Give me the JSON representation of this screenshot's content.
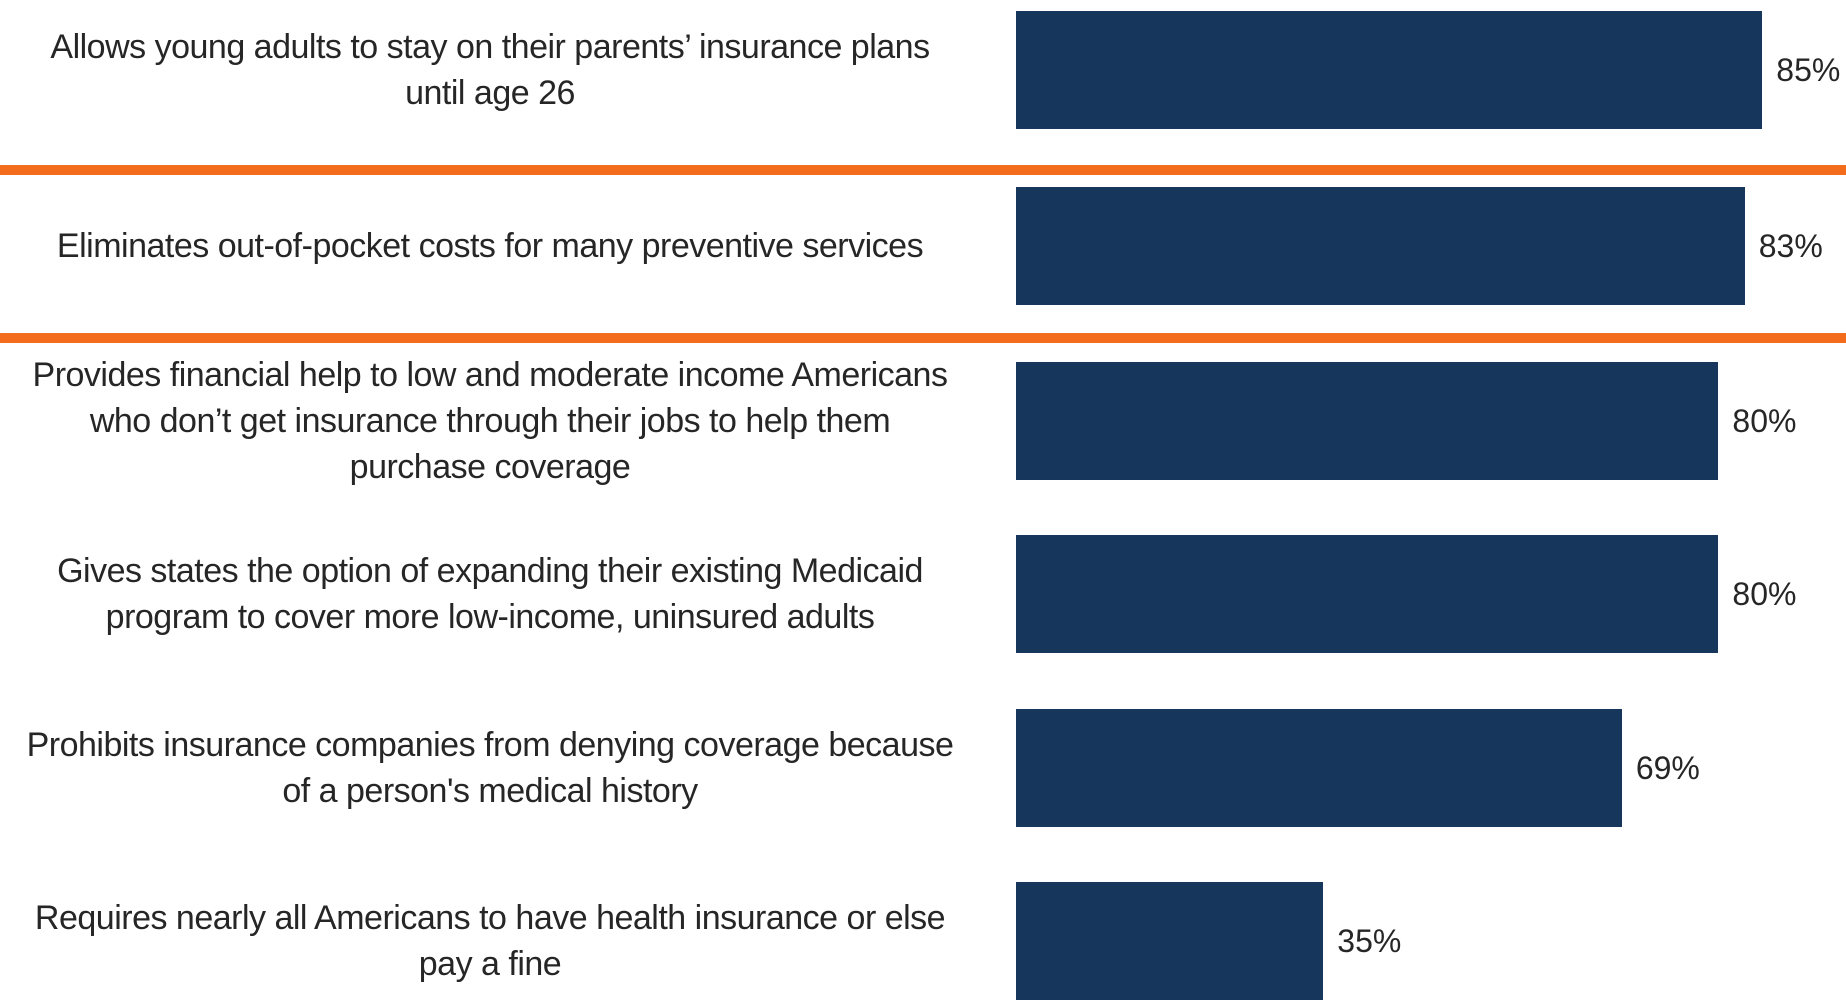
{
  "chart_data": {
    "type": "bar",
    "orientation": "horizontal",
    "categories": [
      "Allows young adults to stay on their parents’ insurance plans\nuntil age 26",
      "Eliminates out-of-pocket costs for many preventive services",
      "Provides financial help to low and moderate income Americans\nwho don’t get insurance through their jobs to help them\npurchase coverage",
      "Gives states the option of expanding their existing Medicaid\nprogram to cover more low-income, uninsured adults",
      "Prohibits insurance companies from denying coverage because\nof a person's medical history",
      "Requires nearly all Americans to have health insurance or else\npay a fine"
    ],
    "values": [
      85,
      83,
      80,
      80,
      69,
      35
    ],
    "value_labels": [
      "85%",
      "83%",
      "80%",
      "80%",
      "69%",
      "35%"
    ],
    "highlight_separators": [
      "after category 1",
      "after category 2"
    ],
    "colors": {
      "bar": "#17365c",
      "separator": "#f26c1b",
      "text": "#262626"
    },
    "grid": false,
    "legend": "none",
    "title": "",
    "xlabel": "",
    "ylabel": ""
  }
}
